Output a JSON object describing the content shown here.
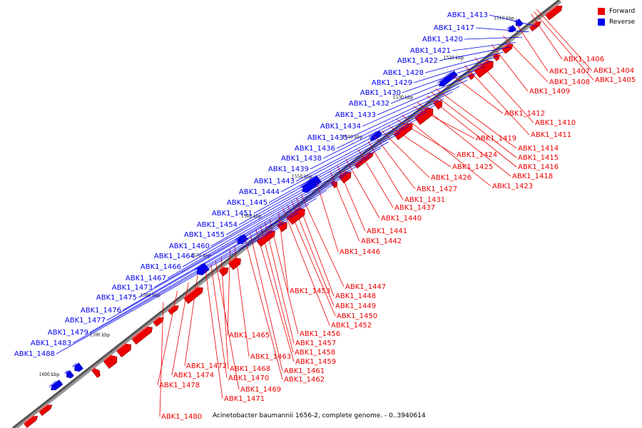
{
  "legend": {
    "forward_label": "Forward",
    "reverse_label": "Reverse",
    "forward_color": "#ee0000",
    "reverse_color": "#0000ee"
  },
  "caption": "Acinetobacter baumannii 1656-2, complete genome. - 0..3940614",
  "scale_ticks": [
    "1510 kbp",
    "1520 kbp",
    "1530 kbp",
    "1540 kbp",
    "1550 kbp",
    "1560 kbp",
    "1570 kbp",
    "1580 kbp",
    "1590 kbp",
    "1600 kbp"
  ],
  "forward_labels": [
    "ABK1_1404",
    "ABK1_1405",
    "ABK1_1406",
    "ABK1_1407",
    "ABK1_1408",
    "ABK1_1409",
    "ABK1_1410",
    "ABK1_1411",
    "ABK1_1412",
    "ABK1_1414",
    "ABK1_1415",
    "ABK1_1416",
    "ABK1_1418",
    "ABK1_1419",
    "ABK1_1423",
    "ABK1_1424",
    "ABK1_1425",
    "ABK1_1426",
    "ABK1_1427",
    "ABK1_1431",
    "ABK1_1437",
    "ABK1_1440",
    "ABK1_1441",
    "ABK1_1442",
    "ABK1_1446",
    "ABK1_1447",
    "ABK1_1448",
    "ABK1_1449",
    "ABK1_1450",
    "ABK1_1452",
    "ABK1_1453",
    "ABK1_1456",
    "ABK1_1457",
    "ABK1_1458",
    "ABK1_1459",
    "ABK1_1461",
    "ABK1_1462",
    "ABK1_1463",
    "ABK1_1465",
    "ABK1_1468",
    "ABK1_1469",
    "ABK1_1470",
    "ABK1_1471",
    "ABK1_1472",
    "ABK1_1474",
    "ABK1_1478",
    "ABK1_1480"
  ],
  "reverse_labels": [
    "ABK1_1413",
    "ABK1_1417",
    "ABK1_1420",
    "ABK1_1421",
    "ABK1_1422",
    "ABK1_1428",
    "ABK1_1429",
    "ABK1_1430",
    "ABK1_1432",
    "ABK1_1433",
    "ABK1_1434",
    "ABK1_1435",
    "ABK1_1436",
    "ABK1_1438",
    "ABK1_1439",
    "ABK1_1443",
    "ABK1_1444",
    "ABK1_1445",
    "ABK1_1451",
    "ABK1_1454",
    "ABK1_1455",
    "ABK1_1460",
    "ABK1_1464",
    "ABK1_1466",
    "ABK1_1467",
    "ABK1_1473",
    "ABK1_1475",
    "ABK1_1476",
    "ABK1_1477",
    "ABK1_1479",
    "ABK1_1483",
    "ABK1_1488"
  ]
}
